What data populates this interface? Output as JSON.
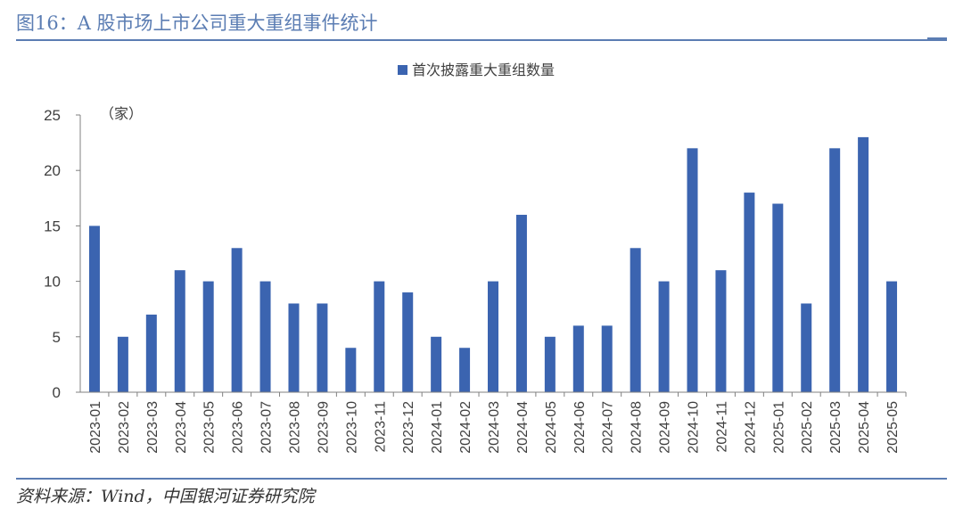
{
  "figure": {
    "title": "图16：A 股市场上市公司重大重组事件统计",
    "source": "资料来源：Wind，中国银河证券研究院"
  },
  "colors": {
    "bar": "#3b64b0",
    "accent": "#5b7db3",
    "axis": "#808080"
  },
  "chart_data": {
    "type": "bar",
    "title": "",
    "xlabel": "",
    "ylabel": "（家）",
    "ylim": [
      0,
      25
    ],
    "yticks": [
      0,
      5,
      10,
      15,
      20,
      25
    ],
    "grid": false,
    "legend_position": "top-center",
    "categories": [
      "2023-01",
      "2023-02",
      "2023-03",
      "2023-04",
      "2023-05",
      "2023-06",
      "2023-07",
      "2023-08",
      "2023-09",
      "2023-10",
      "2023-11",
      "2023-12",
      "2024-01",
      "2024-02",
      "2024-03",
      "2024-04",
      "2024-05",
      "2024-06",
      "2024-07",
      "2024-08",
      "2024-09",
      "2024-10",
      "2024-11",
      "2024-12",
      "2025-01",
      "2025-02",
      "2025-03",
      "2025-04",
      "2025-05"
    ],
    "series": [
      {
        "name": "首次披露重大重组数量",
        "values": [
          15,
          5,
          7,
          11,
          10,
          13,
          10,
          8,
          8,
          4,
          10,
          9,
          5,
          4,
          10,
          16,
          5,
          6,
          6,
          13,
          10,
          22,
          11,
          18,
          17,
          8,
          22,
          23,
          10
        ]
      }
    ]
  }
}
